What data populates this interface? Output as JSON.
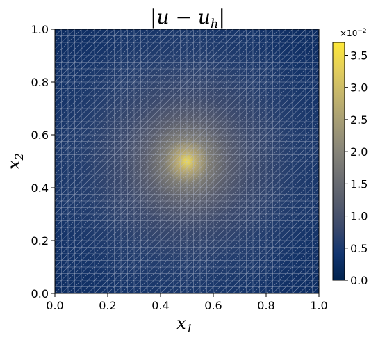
{
  "chart_data": {
    "type": "heatmap",
    "title": "|u − u",
    "title_sub": "h",
    "title_close": "|",
    "xlabel": "x",
    "xlabel_sub": "1",
    "ylabel": "x",
    "ylabel_sub": "2",
    "xlim": [
      0.0,
      1.0
    ],
    "ylim": [
      0.0,
      1.0
    ],
    "x_ticks": [
      0.0,
      0.2,
      0.4,
      0.6,
      0.8,
      1.0
    ],
    "x_tick_labels": [
      "0.0",
      "0.2",
      "0.4",
      "0.6",
      "0.8",
      "1.0"
    ],
    "y_ticks": [
      0.0,
      0.2,
      0.4,
      0.6,
      0.8,
      1.0
    ],
    "y_tick_labels": [
      "0.0",
      "0.2",
      "0.4",
      "0.6",
      "0.8",
      "1.0"
    ],
    "field": {
      "description_of_values": "pointwise error, peak at domain center",
      "peak_location": [
        0.5,
        0.5
      ],
      "peak_value": 0.037,
      "min_value": 0.0
    },
    "mesh": {
      "type": "triangular",
      "divisions": 40,
      "edge_color": "#b4bcd0"
    },
    "colorbar": {
      "colormap": "cividis",
      "range": [
        0.0,
        3.7
      ],
      "ticks": [
        0.0,
        0.5,
        1.0,
        1.5,
        2.0,
        2.5,
        3.0,
        3.5
      ],
      "tick_labels": [
        "0.0",
        "0.5",
        "1.0",
        "1.5",
        "2.0",
        "2.5",
        "3.0",
        "3.5"
      ],
      "multiplier_base": "×10",
      "multiplier_exp": "−2",
      "color_stops": [
        "#00224e",
        "#123570",
        "#3b496c",
        "#575d6d",
        "#707173",
        "#8a8779",
        "#a69d75",
        "#c4b56c",
        "#e4cf5b",
        "#fee838"
      ]
    }
  }
}
